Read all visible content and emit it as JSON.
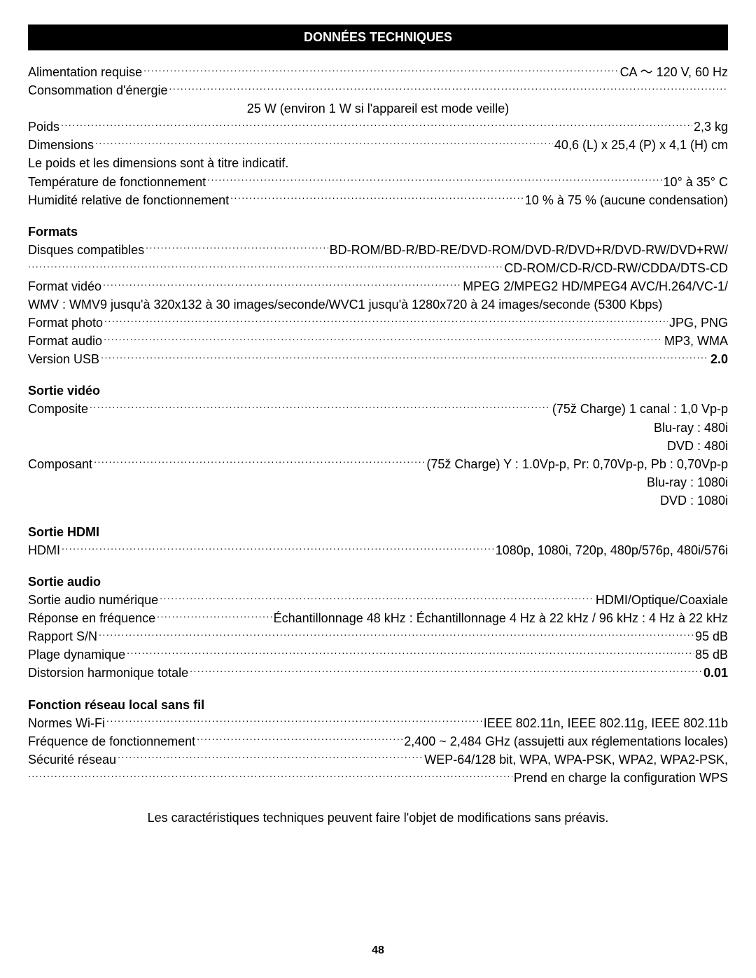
{
  "header": {
    "title": "DONNÉES TECHNIQUES"
  },
  "general": {
    "power_label": "Alimentation requise",
    "power_value": "CA  ～   120 V, 60 Hz",
    "consumption_label": "Consommation d'énergie",
    "consumption_note_center": "25 W (environ 1 W si l'appareil est mode veille)",
    "weight_label": "Poids",
    "weight_value": "2,3 kg",
    "dimensions_label": "Dimensions",
    "dimensions_value": "40,6 (L) x 25,4 (P) x 4,1 (H) cm",
    "note_line": "Le poids et les dimensions sont à titre indicatif.",
    "temp_label": "Température de fonctionnement",
    "temp_value": "10° à 35° C",
    "humidity_label": "Humidité relative de fonctionnement",
    "humidity_value": "10 % à 75 % (aucune condensation)"
  },
  "formats": {
    "heading": "Formats",
    "discs_label": "Disques compatibles",
    "discs_value": "BD-ROM/BD-R/BD-RE/DVD-ROM/DVD-R/DVD+R/DVD-RW/DVD+RW/",
    "discs_cont_value": "CD-ROM/CD-R/CD-RW/CDDA/DTS-CD",
    "video_label": "Format vidéo",
    "video_value": "MPEG 2/MPEG2 HD/MPEG4 AVC/H.264/VC-1/",
    "wmv_line": "WMV : WMV9 jusqu'à 320x132 à 30 images/seconde/WVC1 jusqu'à 1280x720 à 24 images/seconde (5300 Kbps)",
    "photo_label": "Format photo",
    "photo_value": "JPG, PNG",
    "audio_label": "Format audio",
    "audio_value": "MP3, WMA",
    "usb_label": "Version USB",
    "usb_value": "2.0"
  },
  "video_out": {
    "heading": "Sortie vidéo",
    "composite_label": "Composite",
    "composite_value": "(75ž Charge) 1 canal : 1,0 Vp-p",
    "br_line": "Blu-ray : 480i",
    "dvd_line": "DVD : 480i",
    "component_label": "Composant",
    "component_value": "(75ž Charge) Y : 1.0Vp-p, Pr: 0,70Vp-p, Pb : 0,70Vp-p",
    "br2_line": "Blu-ray : 1080i",
    "dvd2_line": "DVD : 1080i"
  },
  "hdmi_out": {
    "heading": "Sortie HDMI",
    "hdmi_label": "HDMI",
    "hdmi_value": "1080p, 1080i, 720p, 480p/576p, 480i/576i"
  },
  "audio_out": {
    "heading": "Sortie audio",
    "digital_label": "Sortie audio numérique",
    "digital_value": "HDMI/Optique/Coaxiale",
    "freq_label": "Réponse en fréquence",
    "freq_value": "Échantillonnage 48 kHz : Échantillonnage 4 Hz à 22 kHz / 96 kHz : 4 Hz à 22 kHz",
    "sn_label": "Rapport S/N",
    "sn_value": "95 dB",
    "dynamic_label": "Plage dynamique",
    "dynamic_value": "85 dB",
    "thd_label": "Distorsion harmonique totale",
    "thd_value": "0.01"
  },
  "wifi": {
    "heading": "Fonction réseau local sans fil",
    "norms_label": "Normes Wi-Fi",
    "norms_value": "IEEE 802.11n, IEEE 802.11g, IEEE 802.11b",
    "freq_label": "Fréquence de fonctionnement",
    "freq_value": "2,400 ~ 2,484 GHz (assujetti aux réglementations locales)",
    "sec_label": "Sécurité réseau",
    "sec_value": "WEP-64/128 bit, WPA, WPA-PSK, WPA2, WPA2-PSK,",
    "sec_cont_value": "Prend en charge la configuration WPS"
  },
  "footer": {
    "note": "Les caractéristiques techniques peuvent faire l'objet de modifications sans préavis.",
    "page": "48"
  }
}
